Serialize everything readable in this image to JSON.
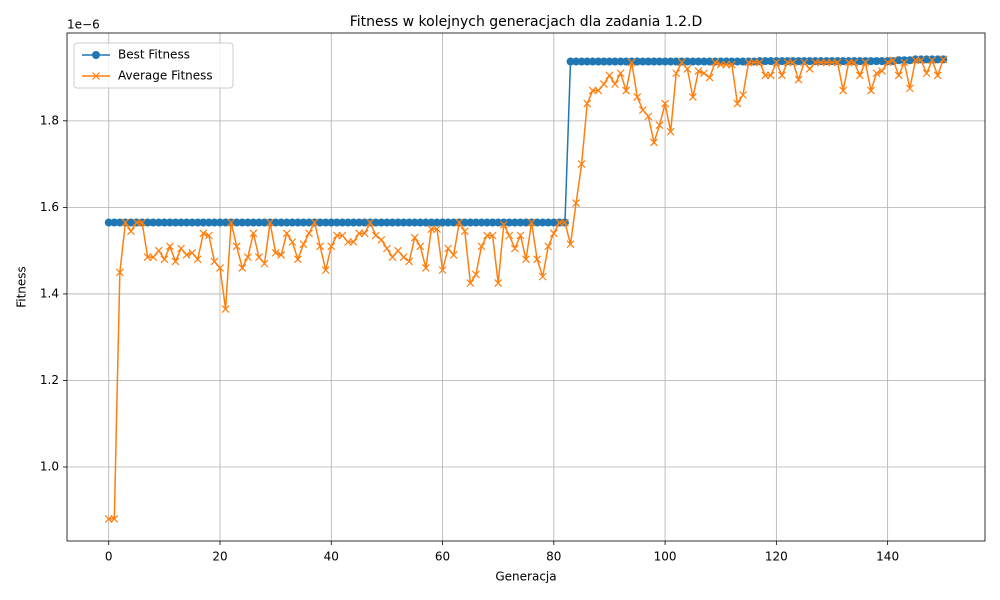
{
  "chart_data": {
    "type": "line",
    "title": "Fitness w kolejnych generacjach dla zadania 1.2.D",
    "x_label": "Generacja",
    "y_label": "Fitness",
    "y_offset_label": "1e−6",
    "x": [
      0,
      1,
      2,
      3,
      4,
      5,
      6,
      7,
      8,
      9,
      10,
      11,
      12,
      13,
      14,
      15,
      16,
      17,
      18,
      19,
      20,
      21,
      22,
      23,
      24,
      25,
      26,
      27,
      28,
      29,
      30,
      31,
      32,
      33,
      34,
      35,
      36,
      37,
      38,
      39,
      40,
      41,
      42,
      43,
      44,
      45,
      46,
      47,
      48,
      49,
      50,
      51,
      52,
      53,
      54,
      55,
      56,
      57,
      58,
      59,
      60,
      61,
      62,
      63,
      64,
      65,
      66,
      67,
      68,
      69,
      70,
      71,
      72,
      73,
      74,
      75,
      76,
      77,
      78,
      79,
      80,
      81,
      82,
      83,
      84,
      85,
      86,
      87,
      88,
      89,
      90,
      91,
      92,
      93,
      94,
      95,
      96,
      97,
      98,
      99,
      100,
      101,
      102,
      103,
      104,
      105,
      106,
      107,
      108,
      109,
      110,
      111,
      112,
      113,
      114,
      115,
      116,
      117,
      118,
      119,
      120,
      121,
      122,
      123,
      124,
      125,
      126,
      127,
      128,
      129,
      130,
      131,
      132,
      133,
      134,
      135,
      136,
      137,
      138,
      139,
      140,
      141,
      142,
      143,
      144,
      145,
      146,
      147,
      148,
      149,
      150
    ],
    "series": [
      {
        "name": "Best Fitness",
        "color": "#1f77b4",
        "marker": "o",
        "values": [
          1.565,
          1.565,
          1.565,
          1.565,
          1.565,
          1.565,
          1.565,
          1.565,
          1.565,
          1.565,
          1.565,
          1.565,
          1.565,
          1.565,
          1.565,
          1.565,
          1.565,
          1.565,
          1.565,
          1.565,
          1.565,
          1.565,
          1.565,
          1.565,
          1.565,
          1.565,
          1.565,
          1.565,
          1.565,
          1.565,
          1.565,
          1.565,
          1.565,
          1.565,
          1.565,
          1.565,
          1.565,
          1.565,
          1.565,
          1.565,
          1.565,
          1.565,
          1.565,
          1.565,
          1.565,
          1.565,
          1.565,
          1.565,
          1.565,
          1.565,
          1.565,
          1.565,
          1.565,
          1.565,
          1.565,
          1.565,
          1.565,
          1.565,
          1.565,
          1.565,
          1.565,
          1.565,
          1.565,
          1.565,
          1.565,
          1.565,
          1.565,
          1.565,
          1.565,
          1.565,
          1.565,
          1.565,
          1.565,
          1.565,
          1.565,
          1.565,
          1.565,
          1.565,
          1.565,
          1.565,
          1.565,
          1.565,
          1.565,
          1.937,
          1.937,
          1.937,
          1.937,
          1.937,
          1.937,
          1.937,
          1.937,
          1.937,
          1.937,
          1.937,
          1.937,
          1.937,
          1.937,
          1.937,
          1.937,
          1.937,
          1.937,
          1.937,
          1.937,
          1.937,
          1.937,
          1.937,
          1.937,
          1.937,
          1.937,
          1.937,
          1.937,
          1.937,
          1.937,
          1.937,
          1.937,
          1.937,
          1.937,
          1.938,
          1.938,
          1.938,
          1.938,
          1.938,
          1.938,
          1.938,
          1.938,
          1.938,
          1.938,
          1.938,
          1.938,
          1.938,
          1.938,
          1.938,
          1.938,
          1.938,
          1.938,
          1.938,
          1.938,
          1.938,
          1.938,
          1.938,
          1.938,
          1.938,
          1.94,
          1.94,
          1.94,
          1.942,
          1.942,
          1.942,
          1.942,
          1.942,
          1.942
        ]
      },
      {
        "name": "Average Fitness",
        "color": "#ff7f0e",
        "marker": "x",
        "values": [
          0.88,
          0.88,
          1.45,
          1.565,
          1.545,
          1.565,
          1.565,
          1.485,
          1.485,
          1.5,
          1.48,
          1.51,
          1.475,
          1.505,
          1.49,
          1.495,
          1.48,
          1.54,
          1.535,
          1.475,
          1.46,
          1.365,
          1.565,
          1.51,
          1.46,
          1.485,
          1.54,
          1.485,
          1.47,
          1.565,
          1.495,
          1.49,
          1.54,
          1.52,
          1.48,
          1.515,
          1.54,
          1.565,
          1.51,
          1.455,
          1.51,
          1.535,
          1.535,
          1.52,
          1.52,
          1.54,
          1.54,
          1.565,
          1.535,
          1.525,
          1.505,
          1.485,
          1.5,
          1.485,
          1.475,
          1.53,
          1.51,
          1.46,
          1.55,
          1.55,
          1.455,
          1.505,
          1.49,
          1.565,
          1.545,
          1.425,
          1.445,
          1.51,
          1.535,
          1.535,
          1.425,
          1.56,
          1.535,
          1.505,
          1.535,
          1.48,
          1.565,
          1.48,
          1.44,
          1.51,
          1.54,
          1.565,
          1.565,
          1.515,
          1.61,
          1.7,
          1.84,
          1.87,
          1.87,
          1.885,
          1.905,
          1.885,
          1.91,
          1.87,
          1.935,
          1.855,
          1.825,
          1.81,
          1.75,
          1.79,
          1.84,
          1.775,
          1.91,
          1.935,
          1.92,
          1.855,
          1.915,
          1.91,
          1.9,
          1.935,
          1.93,
          1.93,
          1.93,
          1.84,
          1.86,
          1.935,
          1.935,
          1.935,
          1.905,
          1.905,
          1.935,
          1.905,
          1.935,
          1.935,
          1.895,
          1.935,
          1.92,
          1.935,
          1.935,
          1.935,
          1.935,
          1.935,
          1.87,
          1.935,
          1.935,
          1.905,
          1.935,
          1.87,
          1.91,
          1.915,
          1.935,
          1.94,
          1.905,
          1.935,
          1.875,
          1.94,
          1.94,
          1.91,
          1.94,
          1.905,
          1.942
        ]
      }
    ],
    "xlim": [
      -7.5,
      157.5
    ],
    "ylim": [
      0.829,
      2.003
    ],
    "xticks": [
      0,
      20,
      40,
      60,
      80,
      100,
      120,
      140
    ],
    "yticks": [
      {
        "value": 1,
        "label": "1.0"
      },
      {
        "value": 1.2,
        "label": "1.2"
      },
      {
        "value": 1.4,
        "label": "1.4"
      },
      {
        "value": 1.6,
        "label": "1.6"
      },
      {
        "value": 1.8,
        "label": "1.8"
      }
    ],
    "grid": true,
    "legend": "upper-left"
  }
}
